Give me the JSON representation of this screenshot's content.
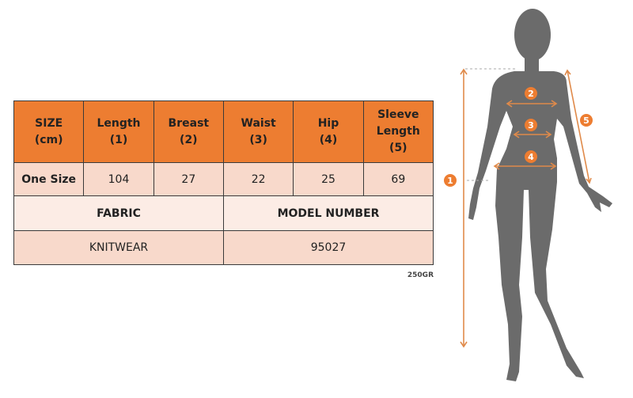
{
  "table": {
    "headers": [
      "SIZE\n(cm)",
      "Length\n(1)",
      "Breast\n(2)",
      "Waist\n(3)",
      "Hip\n(4)",
      "Sleeve\nLength\n(5)"
    ],
    "header_lines": [
      [
        "SIZE",
        "(cm)"
      ],
      [
        "Length",
        "(1)"
      ],
      [
        "Breast",
        "(2)"
      ],
      [
        "Waist",
        "(3)"
      ],
      [
        "Hip",
        "(4)"
      ],
      [
        "Sleeve",
        "Length",
        "(5)"
      ]
    ],
    "size_row": {
      "label": "One Size",
      "values": [
        "104",
        "27",
        "22",
        "25",
        "69"
      ]
    },
    "info_headers": {
      "fabric": "FABRIC",
      "model_number": "MODEL NUMBER"
    },
    "info_values": {
      "fabric": "KNITWEAR",
      "model_number": "95027"
    }
  },
  "weight": "250GR",
  "figure": {
    "badges": [
      "1",
      "2",
      "3",
      "4",
      "5"
    ],
    "colors": {
      "accent": "#ed7d31",
      "silhouette": "#6b6b6b",
      "arrow": "#e08a4a"
    }
  }
}
